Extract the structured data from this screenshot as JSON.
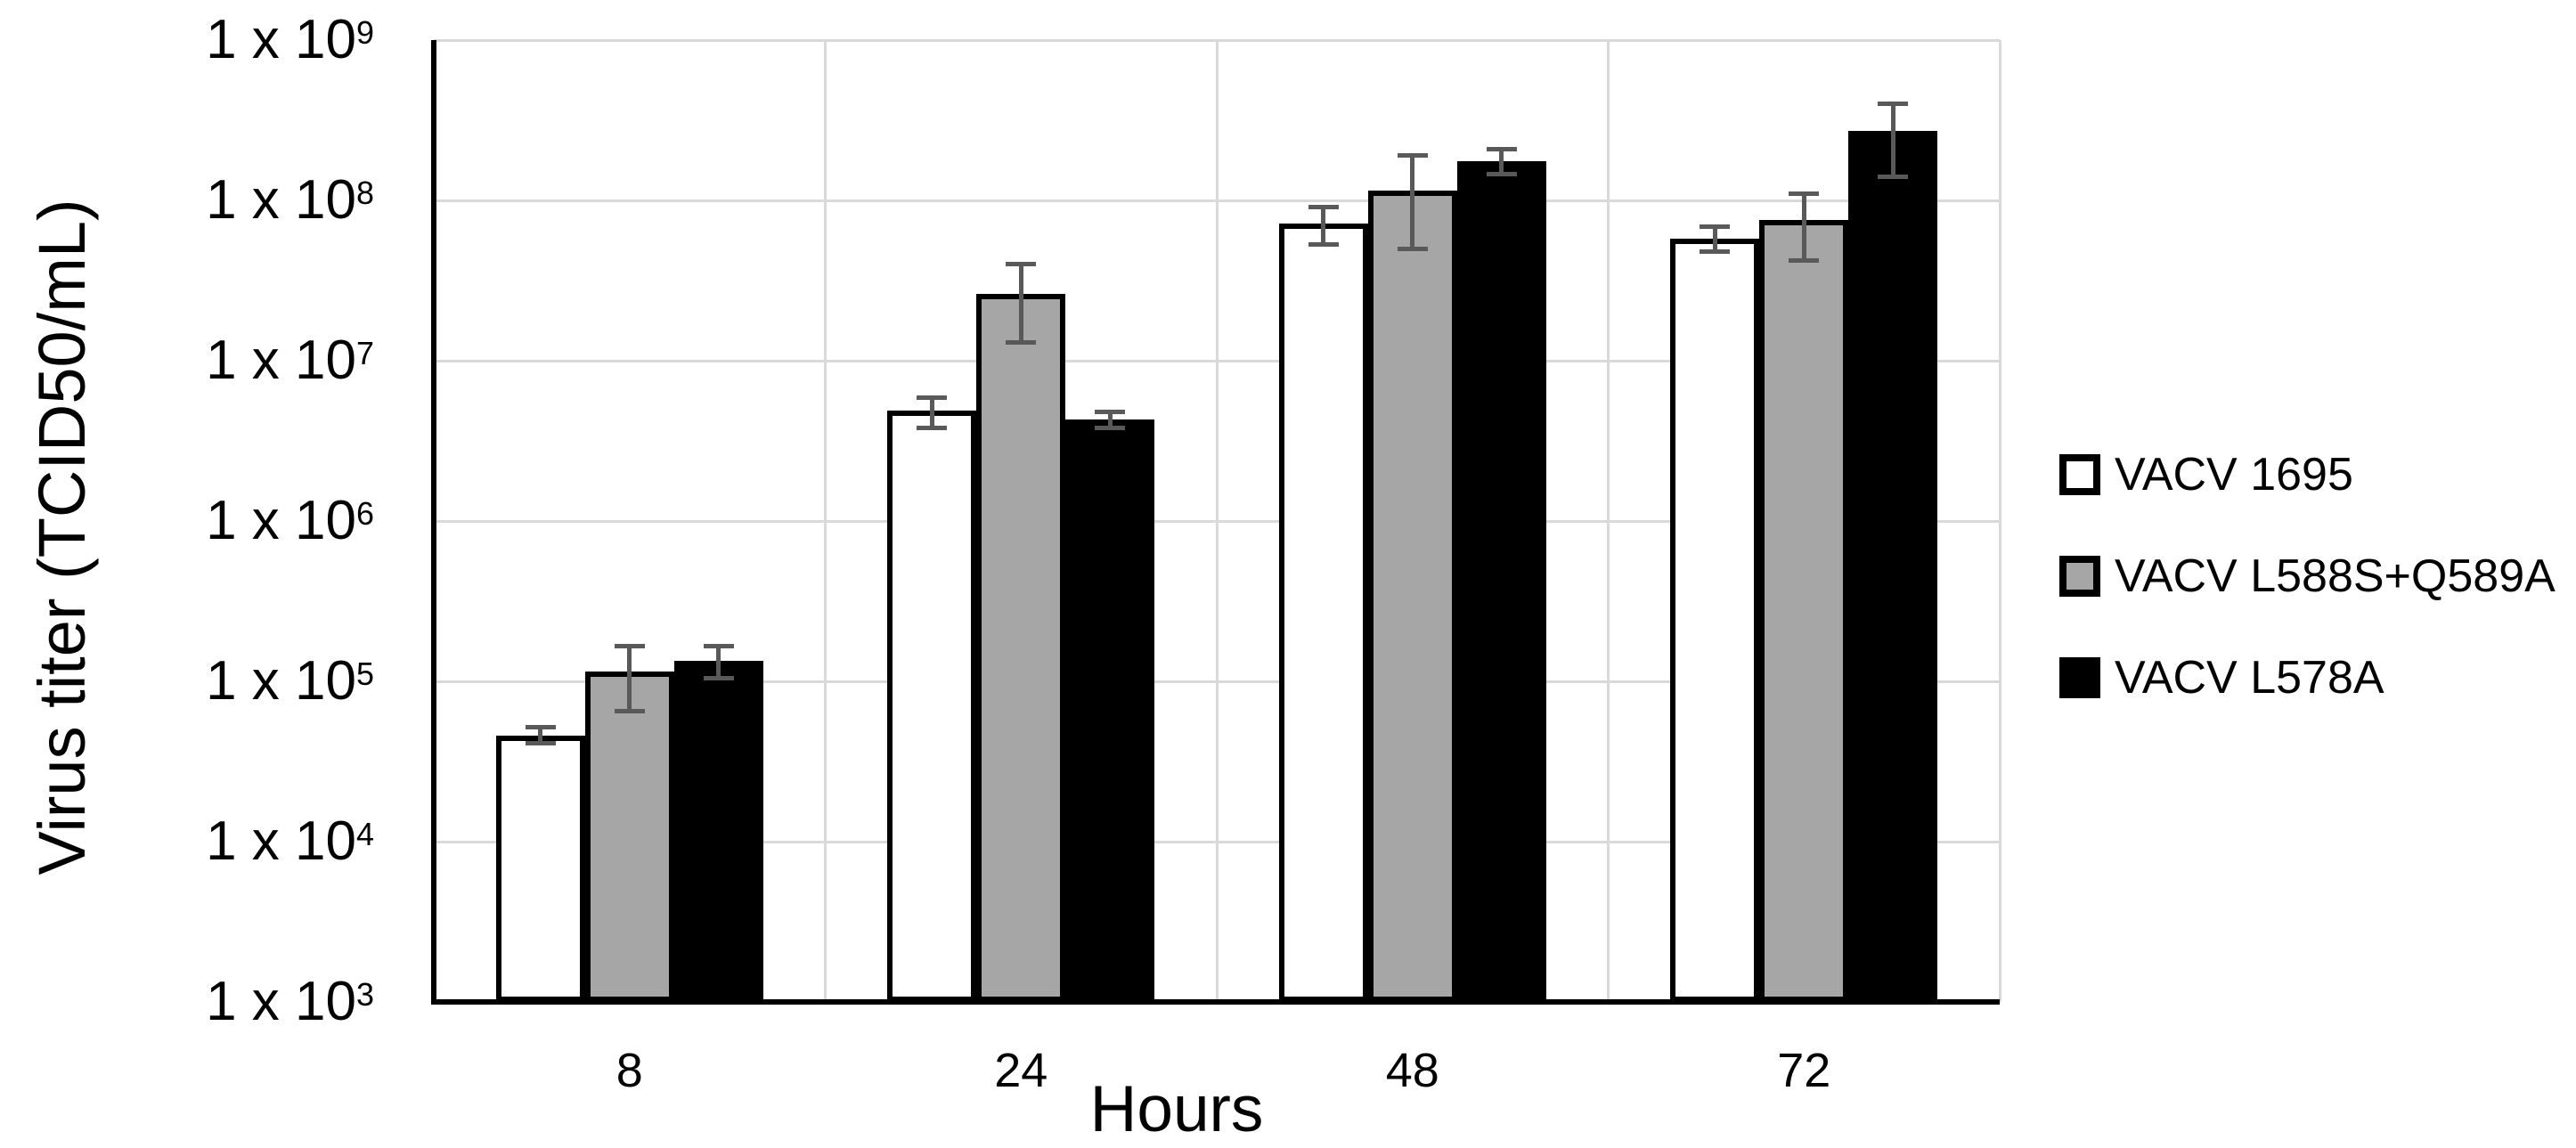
{
  "chart_data": {
    "type": "bar",
    "y_scale": "log10",
    "title": "",
    "xlabel": "Hours",
    "ylabel": "Virus titer (TCID50/mL)",
    "categories": [
      "8",
      "24",
      "48",
      "72"
    ],
    "y_axis": {
      "tick_prefix": "1 x 10",
      "tick_exponents": [
        9,
        8,
        7,
        6,
        5,
        4,
        3
      ],
      "min_exponent": 3,
      "max_exponent": 9,
      "ylim": [
        1000,
        1000000000
      ]
    },
    "grid": true,
    "legend_position": "right",
    "series": [
      {
        "name": "VACV 1695",
        "fill": "#ffffff",
        "values": [
          46000,
          4900000,
          72000000,
          58000000
        ],
        "err_low": [
          41000,
          3800000,
          53000000,
          48000000
        ],
        "err_high": [
          52000,
          5900000,
          91000000,
          69000000
        ]
      },
      {
        "name": "VACV L588S+Q589A",
        "fill": "#a6a6a6",
        "values": [
          115000,
          26000000,
          115000000,
          75000000
        ],
        "err_low": [
          65000,
          13000000,
          50000000,
          42000000
        ],
        "err_high": [
          165000,
          40000000,
          190000000,
          110000000
        ]
      },
      {
        "name": "VACV L578A",
        "fill": "#000000",
        "values": [
          135000,
          4300000,
          175000000,
          270000000
        ],
        "err_low": [
          105000,
          3800000,
          145000000,
          140000000
        ],
        "err_high": [
          165000,
          4800000,
          210000000,
          400000000
        ]
      }
    ],
    "colors": {
      "background": "#ffffff",
      "text": "#000000",
      "axis": "#000000",
      "gridline": "#d9d9d9",
      "bar_border": "#000000",
      "error_bar": "#595959"
    }
  }
}
